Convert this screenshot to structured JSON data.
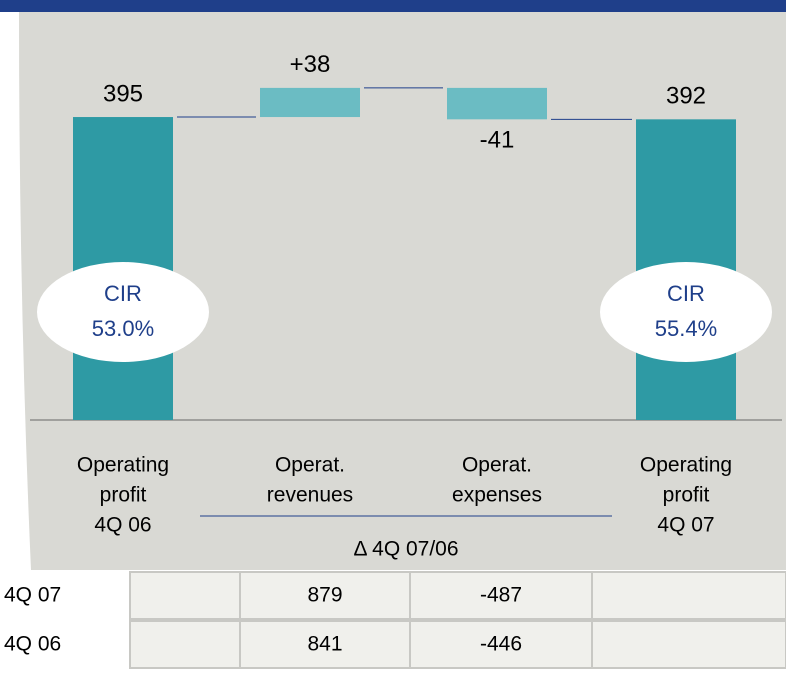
{
  "chart_data": {
    "type": "waterfall",
    "categories": [
      [
        "Operating",
        "profit",
        "4Q 06"
      ],
      [
        "Operat.",
        "revenues"
      ],
      [
        "Operat.",
        "expenses"
      ],
      [
        "Operating",
        "profit",
        "4Q 07"
      ]
    ],
    "kinds": [
      "total",
      "delta",
      "delta",
      "total"
    ],
    "values": [
      395,
      38,
      -41,
      392
    ],
    "value_labels": [
      "395",
      "+38",
      "-41",
      "392"
    ],
    "colors": [
      "#2e9aa4",
      "#6bbcc3",
      "#6bbcc3",
      "#2e9aa4"
    ],
    "group_label": "Δ 4Q 07/06",
    "annotations": [
      {
        "category": 0,
        "lines": [
          "CIR",
          "53.0%"
        ]
      },
      {
        "category": 3,
        "lines": [
          "CIR",
          "55.4%"
        ]
      }
    ]
  },
  "table": {
    "rows": [
      [
        "4Q 07",
        "879",
        "-487"
      ],
      [
        "4Q 06",
        "841",
        "-446"
      ]
    ]
  }
}
